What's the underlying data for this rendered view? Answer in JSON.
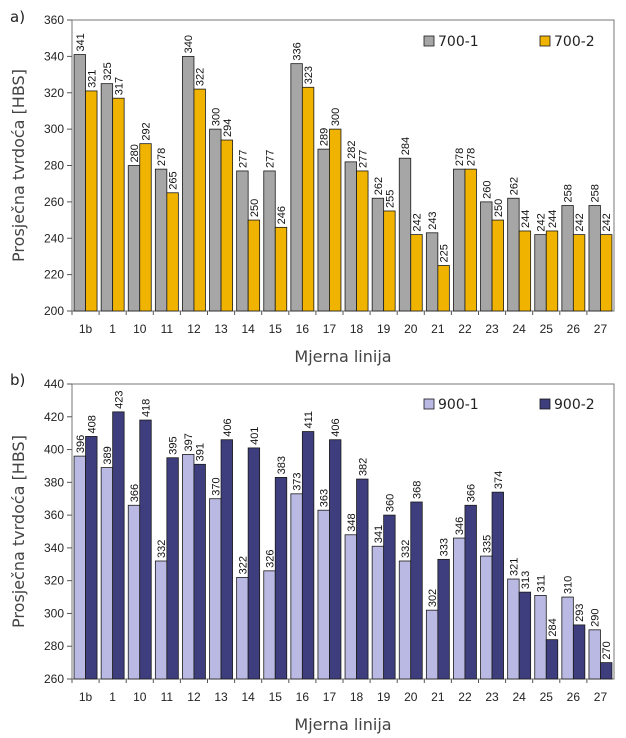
{
  "chart_data": [
    {
      "type": "bar",
      "panel_label": "a)",
      "xlabel": "Mjerna linija",
      "ylabel": "Prosječna tvrdoća [HBS]",
      "ylim": [
        200,
        360
      ],
      "yticks": [
        "200",
        "220",
        "240",
        "260",
        "280",
        "300",
        "320",
        "340",
        "360"
      ],
      "categories": [
        "1b",
        "1",
        "10",
        "11",
        "12",
        "13",
        "14",
        "15",
        "16",
        "17",
        "18",
        "19",
        "20",
        "21",
        "22",
        "23",
        "24",
        "25",
        "26",
        "27"
      ],
      "legend_position": "top-right",
      "series": [
        {
          "name": "700-1",
          "color": "#a6a6a6",
          "values": [
            341,
            325,
            280,
            278,
            340,
            300,
            277,
            277,
            336,
            289,
            282,
            262,
            284,
            243,
            278,
            260,
            262,
            242,
            258,
            258
          ]
        },
        {
          "name": "700-2",
          "color": "#f0b400",
          "values": [
            321,
            317,
            292,
            265,
            322,
            294,
            250,
            246,
            323,
            300,
            277,
            255,
            242,
            225,
            278,
            250,
            244,
            244,
            242,
            242
          ]
        }
      ]
    },
    {
      "type": "bar",
      "panel_label": "b)",
      "xlabel": "Mjerna linija",
      "ylabel": "Prosječna tvrdoća [HBS]",
      "ylim": [
        260,
        440
      ],
      "yticks": [
        "260",
        "280",
        "300",
        "320",
        "340",
        "360",
        "380",
        "400",
        "420",
        "440"
      ],
      "categories": [
        "1b",
        "1",
        "10",
        "11",
        "12",
        "13",
        "14",
        "15",
        "16",
        "17",
        "18",
        "19",
        "20",
        "21",
        "22",
        "23",
        "24",
        "25",
        "26",
        "27"
      ],
      "legend_position": "top-right",
      "series": [
        {
          "name": "900-1",
          "color": "#b9b9e3",
          "values": [
            396,
            389,
            366,
            332,
            397,
            370,
            322,
            326,
            373,
            363,
            348,
            341,
            332,
            302,
            346,
            335,
            321,
            311,
            310,
            290
          ]
        },
        {
          "name": "900-2",
          "color": "#3e3e7e",
          "values": [
            408,
            423,
            418,
            395,
            391,
            406,
            401,
            383,
            411,
            406,
            382,
            360,
            368,
            333,
            366,
            374,
            313,
            284,
            293,
            270
          ]
        }
      ]
    }
  ]
}
